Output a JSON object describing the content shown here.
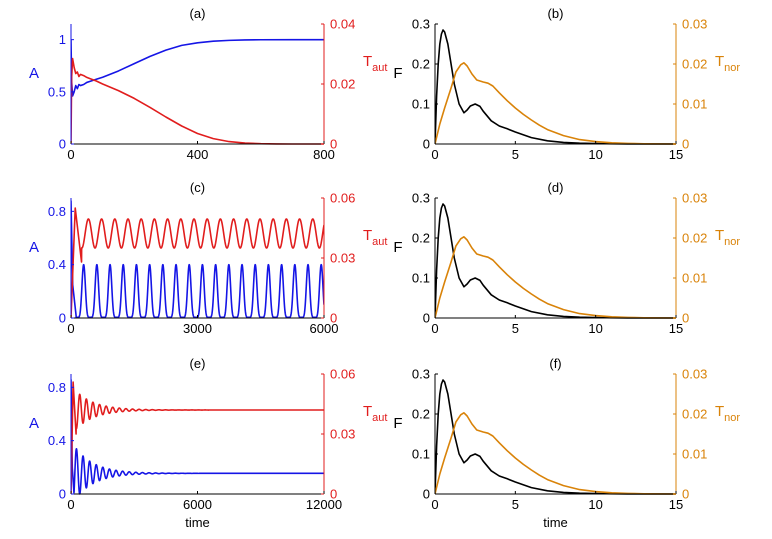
{
  "colors": {
    "blue": "#1515e6",
    "red": "#e11d1d",
    "orange": "#d98309",
    "black": "#000000"
  },
  "chart_data": [
    {
      "type": "line",
      "title": "(a)",
      "xlabel": "",
      "ylabel_left": "A",
      "ylabel_right_base": "T",
      "ylabel_right_sub": "aut",
      "xlim": [
        0,
        800
      ],
      "ylim_left": [
        0,
        1.15
      ],
      "ylim_right": [
        0,
        0.04
      ],
      "xticks": [
        "0",
        "400",
        "800"
      ],
      "yticks_left": [
        "0",
        "0.5",
        "1"
      ],
      "yticks_right": [
        "0",
        "0.02",
        "0.04"
      ],
      "series": [
        {
          "name": "A",
          "axis": "left",
          "color": "#1515e6",
          "x": [
            0,
            2,
            5,
            10,
            15,
            20,
            25,
            30,
            40,
            50,
            60,
            80,
            100,
            150,
            200,
            250,
            300,
            350,
            400,
            450,
            500,
            550,
            600,
            700,
            800
          ],
          "y": [
            1.0,
            0.6,
            0.46,
            0.5,
            0.56,
            0.53,
            0.57,
            0.56,
            0.57,
            0.59,
            0.6,
            0.62,
            0.64,
            0.7,
            0.77,
            0.84,
            0.9,
            0.945,
            0.97,
            0.985,
            0.993,
            0.997,
            0.999,
            1.0,
            1.0
          ]
        },
        {
          "name": "T_aut",
          "axis": "right",
          "color": "#e11d1d",
          "x": [
            0,
            2,
            5,
            10,
            15,
            20,
            25,
            30,
            40,
            50,
            60,
            80,
            100,
            150,
            200,
            250,
            300,
            350,
            400,
            450,
            500,
            550,
            600,
            650,
            700,
            800
          ],
          "y": [
            0.0,
            0.022,
            0.0285,
            0.0255,
            0.0235,
            0.024,
            0.0225,
            0.0232,
            0.0228,
            0.0222,
            0.0218,
            0.021,
            0.02,
            0.0178,
            0.0152,
            0.0122,
            0.009,
            0.006,
            0.0035,
            0.0018,
            0.0008,
            0.0003,
            0.0001,
            3e-05,
            0.0,
            0.0
          ]
        }
      ]
    },
    {
      "type": "line",
      "title": "(b)",
      "xlabel": "",
      "ylabel_left": "F",
      "ylabel_right_base": "T",
      "ylabel_right_sub": "nor",
      "xlim": [
        0,
        15
      ],
      "ylim_left": [
        0,
        0.3
      ],
      "ylim_right": [
        0,
        0.03
      ],
      "xticks": [
        "0",
        "5",
        "10",
        "15"
      ],
      "yticks_left": [
        "0",
        "0.1",
        "0.2",
        "0.3"
      ],
      "yticks_right": [
        "0",
        "0.01",
        "0.02",
        "0.03"
      ],
      "series": [
        {
          "name": "F",
          "axis": "left",
          "color": "#000000",
          "x": [
            0,
            0.1,
            0.2,
            0.3,
            0.4,
            0.5,
            0.6,
            0.8,
            1.0,
            1.2,
            1.5,
            1.8,
            2.0,
            2.2,
            2.5,
            2.8,
            3.0,
            3.5,
            4.0,
            4.5,
            5.0,
            6.0,
            7.0,
            8.0,
            9.0,
            10.0,
            12.0,
            15.0
          ],
          "y": [
            0,
            0.12,
            0.2,
            0.25,
            0.275,
            0.285,
            0.28,
            0.25,
            0.2,
            0.15,
            0.1,
            0.078,
            0.085,
            0.095,
            0.1,
            0.094,
            0.082,
            0.058,
            0.045,
            0.038,
            0.03,
            0.016,
            0.008,
            0.004,
            0.002,
            0.001,
            0.0002,
            0.0
          ]
        },
        {
          "name": "T_nor",
          "axis": "right",
          "color": "#d98309",
          "x": [
            0,
            0.3,
            0.6,
            1.0,
            1.3,
            1.6,
            1.8,
            2.0,
            2.3,
            2.6,
            3.0,
            3.3,
            3.6,
            4.0,
            4.5,
            5.0,
            5.5,
            6.0,
            6.5,
            7.0,
            8.0,
            9.0,
            10.0,
            11.0,
            12.0,
            13.0,
            15.0
          ],
          "y": [
            0.0,
            0.005,
            0.009,
            0.014,
            0.018,
            0.0198,
            0.0203,
            0.0195,
            0.0175,
            0.016,
            0.0155,
            0.0152,
            0.0145,
            0.0128,
            0.0108,
            0.009,
            0.0074,
            0.006,
            0.0047,
            0.0036,
            0.0021,
            0.0011,
            0.0006,
            0.0003,
            0.00015,
            5e-05,
            0.0
          ]
        }
      ]
    },
    {
      "type": "line",
      "title": "(c)",
      "xlabel": "",
      "ylabel_left": "A",
      "ylabel_right_base": "T",
      "ylabel_right_sub": "aut",
      "xlim": [
        0,
        6000
      ],
      "ylim_left": [
        0,
        0.9
      ],
      "ylim_right": [
        0,
        0.06
      ],
      "xticks": [
        "0",
        "3000",
        "6000"
      ],
      "yticks_left": [
        "0",
        "0.4",
        "0.8"
      ],
      "yticks_right": [
        "0",
        "0.03",
        "0.06"
      ],
      "series": [
        {
          "name": "A",
          "axis": "left",
          "color": "#1515e6",
          "model": {
            "kind": "oscillation",
            "period": 313,
            "phase_peak": 300,
            "min": 0.005,
            "max": 0.4,
            "sharpness": 3,
            "start": [
              [
                0,
                0.88
              ],
              [
                40,
                0.25
              ],
              [
                120,
                0.02
              ]
            ]
          }
        },
        {
          "name": "T_aut",
          "axis": "right",
          "color": "#e11d1d",
          "model": {
            "kind": "oscillation",
            "period": 313,
            "phase_peak": 100,
            "min": 0.035,
            "max": 0.0495,
            "sharpness": 1,
            "start": [
              [
                0,
                0.0
              ],
              [
                100,
                0.055
              ],
              [
                250,
                0.028
              ]
            ]
          }
        }
      ]
    },
    {
      "type": "line",
      "title": "(d)",
      "xlabel": "",
      "ylabel_left": "F",
      "ylabel_right_base": "T",
      "ylabel_right_sub": "nor",
      "xlim": [
        0,
        15
      ],
      "ylim_left": [
        0,
        0.3
      ],
      "ylim_right": [
        0,
        0.03
      ],
      "xticks": [
        "0",
        "5",
        "10",
        "15"
      ],
      "yticks_left": [
        "0",
        "0.1",
        "0.2",
        "0.3"
      ],
      "yticks_right": [
        "0",
        "0.01",
        "0.02",
        "0.03"
      ],
      "series": [
        {
          "name": "F",
          "axis": "left",
          "color": "#000000",
          "x": [
            0,
            0.1,
            0.2,
            0.3,
            0.4,
            0.5,
            0.6,
            0.8,
            1.0,
            1.2,
            1.5,
            1.8,
            2.0,
            2.2,
            2.5,
            2.8,
            3.0,
            3.5,
            4.0,
            4.5,
            5.0,
            6.0,
            7.0,
            8.0,
            9.0,
            10.0,
            12.0,
            15.0
          ],
          "y": [
            0,
            0.12,
            0.2,
            0.25,
            0.275,
            0.285,
            0.28,
            0.25,
            0.2,
            0.15,
            0.1,
            0.078,
            0.085,
            0.095,
            0.1,
            0.094,
            0.082,
            0.058,
            0.045,
            0.038,
            0.03,
            0.016,
            0.008,
            0.004,
            0.002,
            0.001,
            0.0002,
            0.0
          ]
        },
        {
          "name": "T_nor",
          "axis": "right",
          "color": "#d98309",
          "x": [
            0,
            0.3,
            0.6,
            1.0,
            1.3,
            1.6,
            1.8,
            2.0,
            2.3,
            2.6,
            3.0,
            3.3,
            3.6,
            4.0,
            4.5,
            5.0,
            5.5,
            6.0,
            6.5,
            7.0,
            8.0,
            9.0,
            10.0,
            11.0,
            12.0,
            13.0,
            15.0
          ],
          "y": [
            0.0,
            0.005,
            0.009,
            0.014,
            0.018,
            0.0198,
            0.0203,
            0.0195,
            0.0175,
            0.016,
            0.0155,
            0.0152,
            0.0145,
            0.0128,
            0.0108,
            0.009,
            0.0074,
            0.006,
            0.0047,
            0.0036,
            0.0021,
            0.0011,
            0.0006,
            0.0003,
            0.00015,
            5e-05,
            0.0
          ]
        }
      ]
    },
    {
      "type": "line",
      "title": "(e)",
      "xlabel": "time",
      "ylabel_left": "A",
      "ylabel_right_base": "T",
      "ylabel_right_sub": "aut",
      "xlim": [
        0,
        12000
      ],
      "ylim_left": [
        0,
        0.9
      ],
      "ylim_right": [
        0,
        0.06
      ],
      "xticks": [
        "0",
        "6000",
        "12000"
      ],
      "yticks_left": [
        "0",
        "0.4",
        "0.8"
      ],
      "yticks_right": [
        "0",
        "0.03",
        "0.06"
      ],
      "series": [
        {
          "name": "A",
          "axis": "left",
          "color": "#1515e6",
          "model": {
            "kind": "damped",
            "period": 313,
            "offset": 0.155,
            "amp0": 0.21,
            "decay": 900,
            "phase_peak": 260,
            "start": [
              [
                0,
                0.86
              ],
              [
                60,
                0.2
              ],
              [
                140,
                0.01
              ]
            ]
          }
        },
        {
          "name": "T_aut",
          "axis": "right",
          "color": "#e11d1d",
          "model": {
            "kind": "damped",
            "period": 313,
            "offset": 0.042,
            "amp0": -0.0095,
            "decay": 900,
            "phase_peak": 260,
            "start": [
              [
                0,
                0.0
              ],
              [
                100,
                0.056
              ],
              [
                240,
                0.03
              ]
            ]
          }
        }
      ]
    },
    {
      "type": "line",
      "title": "(f)",
      "xlabel": "time",
      "ylabel_left": "F",
      "ylabel_right_base": "T",
      "ylabel_right_sub": "nor",
      "xlim": [
        0,
        15
      ],
      "ylim_left": [
        0,
        0.3
      ],
      "ylim_right": [
        0,
        0.03
      ],
      "xticks": [
        "0",
        "5",
        "10",
        "15"
      ],
      "yticks_left": [
        "0",
        "0.1",
        "0.2",
        "0.3"
      ],
      "yticks_right": [
        "0",
        "0.01",
        "0.02",
        "0.03"
      ],
      "series": [
        {
          "name": "F",
          "axis": "left",
          "color": "#000000",
          "x": [
            0,
            0.1,
            0.2,
            0.3,
            0.4,
            0.5,
            0.6,
            0.8,
            1.0,
            1.2,
            1.5,
            1.8,
            2.0,
            2.2,
            2.5,
            2.8,
            3.0,
            3.5,
            4.0,
            4.5,
            5.0,
            6.0,
            7.0,
            8.0,
            9.0,
            10.0,
            12.0,
            15.0
          ],
          "y": [
            0,
            0.12,
            0.2,
            0.25,
            0.275,
            0.285,
            0.28,
            0.25,
            0.2,
            0.15,
            0.1,
            0.078,
            0.085,
            0.095,
            0.1,
            0.094,
            0.082,
            0.058,
            0.045,
            0.038,
            0.03,
            0.016,
            0.008,
            0.004,
            0.002,
            0.001,
            0.0002,
            0.0
          ]
        },
        {
          "name": "T_nor",
          "axis": "right",
          "color": "#d98309",
          "x": [
            0,
            0.3,
            0.6,
            1.0,
            1.3,
            1.6,
            1.8,
            2.0,
            2.3,
            2.6,
            3.0,
            3.3,
            3.6,
            4.0,
            4.5,
            5.0,
            5.5,
            6.0,
            6.5,
            7.0,
            8.0,
            9.0,
            10.0,
            11.0,
            12.0,
            13.0,
            15.0
          ],
          "y": [
            0.0,
            0.005,
            0.009,
            0.014,
            0.018,
            0.0198,
            0.0203,
            0.0195,
            0.0175,
            0.016,
            0.0155,
            0.0152,
            0.0145,
            0.0128,
            0.0108,
            0.009,
            0.0074,
            0.006,
            0.0047,
            0.0036,
            0.0021,
            0.0011,
            0.0006,
            0.0003,
            0.00015,
            5e-05,
            0.0
          ]
        }
      ]
    }
  ]
}
